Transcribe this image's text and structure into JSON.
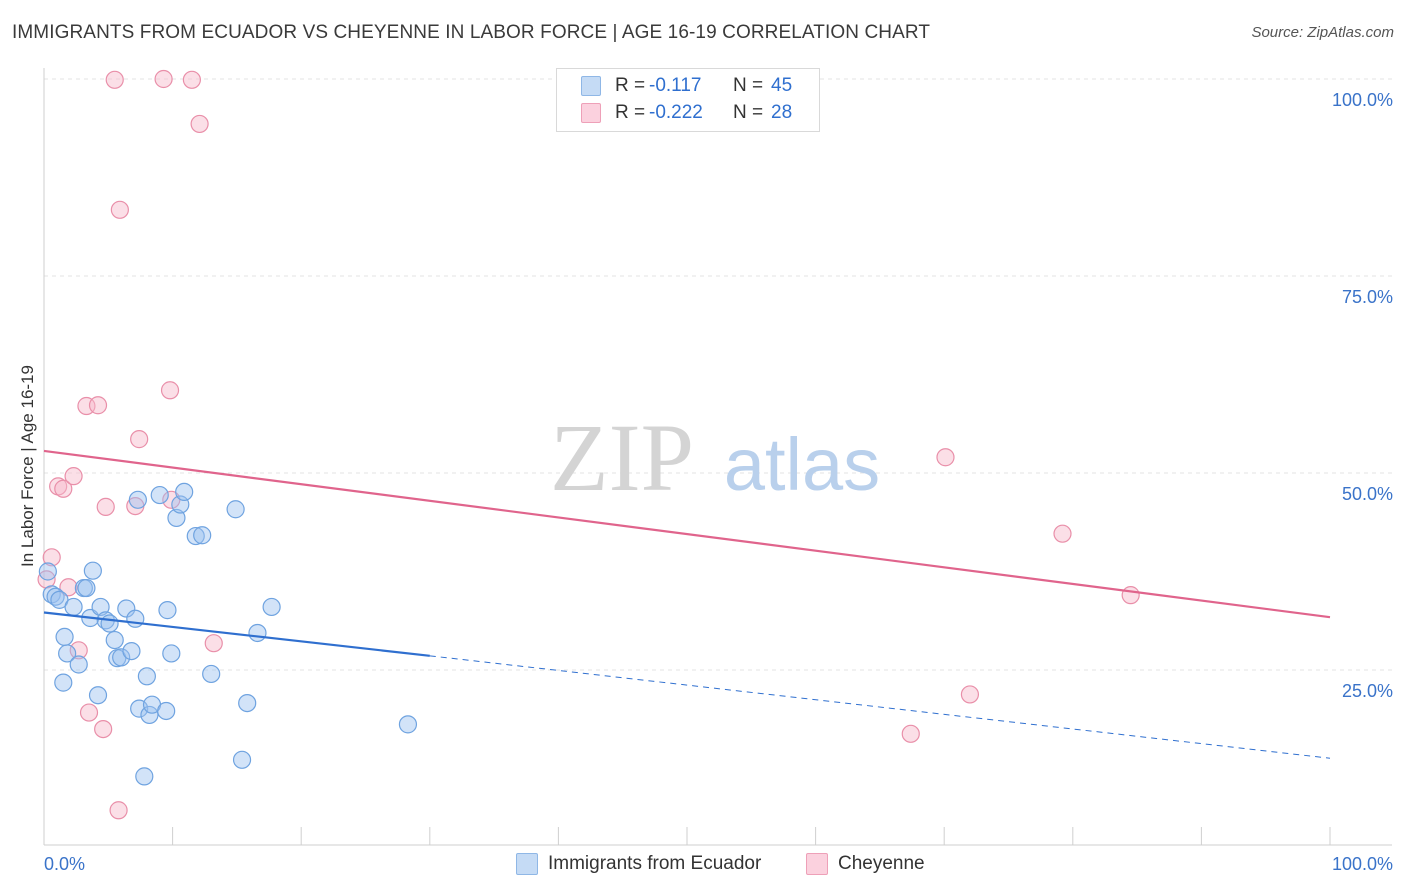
{
  "header": {
    "title": "IMMIGRANTS FROM ECUADOR VS CHEYENNE IN LABOR FORCE | AGE 16-19 CORRELATION CHART",
    "source": "Source: ZipAtlas.com"
  },
  "watermark": {
    "zip": "ZIP",
    "atlas": "atlas"
  },
  "legend": {
    "series1": {
      "r_label": "R =",
      "r_value": "-0.117",
      "n_label": "N =",
      "n_value": "45",
      "color": "#9cc2f0",
      "stroke": "#6fa3e0"
    },
    "series2": {
      "r_label": "R =",
      "r_value": "-0.222",
      "n_label": "N =",
      "n_value": "28",
      "color": "#f7b8ca",
      "stroke": "#e98fa9"
    }
  },
  "bottom_legend": {
    "item1": "Immigrants from Ecuador",
    "item2": "Cheyenne"
  },
  "colors": {
    "blue_line": "#2f6fcf",
    "pink_line": "#e0648c",
    "axis_text": "#3a73c9",
    "grid": "#e3e3e3"
  },
  "chart_data": {
    "type": "scatter",
    "title": "IMMIGRANTS FROM ECUADOR VS CHEYENNE IN LABOR FORCE | AGE 16-19 CORRELATION CHART",
    "xlabel": "",
    "ylabel": "In Labor Force | Age 16-19",
    "xlim": [
      0,
      100
    ],
    "ylim": [
      0,
      103
    ],
    "x_tick_labels": {
      "left": "0.0%",
      "right": "100.0%"
    },
    "y_ticks": [
      {
        "value": 25,
        "label": "25.0%"
      },
      {
        "value": 50,
        "label": "50.0%"
      },
      {
        "value": 75,
        "label": "75.0%"
      },
      {
        "value": 100,
        "label": "100.0%"
      }
    ],
    "series": [
      {
        "name": "Immigrants from Ecuador",
        "points": [
          [
            0.3,
            37.5
          ],
          [
            0.6,
            34.6
          ],
          [
            0.9,
            34.3
          ],
          [
            1.2,
            33.9
          ],
          [
            1.6,
            29.2
          ],
          [
            1.8,
            27.1
          ],
          [
            1.5,
            23.4
          ],
          [
            2.3,
            33.0
          ],
          [
            2.7,
            25.7
          ],
          [
            3.1,
            35.4
          ],
          [
            3.3,
            35.4
          ],
          [
            3.8,
            37.6
          ],
          [
            3.6,
            31.6
          ],
          [
            4.4,
            33.0
          ],
          [
            4.2,
            21.8
          ],
          [
            4.8,
            31.3
          ],
          [
            5.1,
            30.9
          ],
          [
            5.5,
            28.8
          ],
          [
            5.7,
            26.5
          ],
          [
            6.0,
            26.6
          ],
          [
            6.4,
            32.8
          ],
          [
            6.8,
            27.4
          ],
          [
            7.1,
            31.5
          ],
          [
            7.3,
            46.6
          ],
          [
            7.4,
            20.1
          ],
          [
            7.8,
            11.5
          ],
          [
            8.0,
            24.2
          ],
          [
            8.2,
            19.3
          ],
          [
            8.4,
            20.6
          ],
          [
            9.0,
            47.2
          ],
          [
            9.6,
            32.6
          ],
          [
            9.5,
            19.8
          ],
          [
            9.9,
            27.1
          ],
          [
            10.3,
            44.3
          ],
          [
            10.6,
            46.0
          ],
          [
            10.9,
            47.6
          ],
          [
            11.8,
            42.0
          ],
          [
            12.3,
            42.1
          ],
          [
            13.0,
            24.5
          ],
          [
            14.9,
            45.4
          ],
          [
            15.8,
            20.8
          ],
          [
            15.4,
            13.6
          ],
          [
            16.6,
            29.7
          ],
          [
            17.7,
            33.0
          ],
          [
            28.3,
            18.1
          ]
        ],
        "trend": {
          "x_start": 0,
          "y_start": 32.3,
          "x_end_solid": 30,
          "y_end_solid": 26.8,
          "x_end_dashed": 100,
          "y_end_dashed": 13.8
        }
      },
      {
        "name": "Cheyenne",
        "points": [
          [
            0.2,
            36.5
          ],
          [
            0.6,
            39.3
          ],
          [
            1.1,
            48.3
          ],
          [
            1.5,
            48.0
          ],
          [
            1.9,
            35.5
          ],
          [
            2.3,
            49.6
          ],
          [
            2.7,
            27.5
          ],
          [
            3.3,
            58.5
          ],
          [
            3.5,
            19.6
          ],
          [
            4.2,
            58.6
          ],
          [
            4.6,
            17.5
          ],
          [
            4.8,
            45.7
          ],
          [
            5.5,
            99.9
          ],
          [
            5.9,
            83.4
          ],
          [
            5.8,
            7.2
          ],
          [
            7.1,
            45.8
          ],
          [
            7.4,
            54.3
          ],
          [
            9.3,
            100.0
          ],
          [
            9.8,
            60.5
          ],
          [
            9.9,
            46.6
          ],
          [
            11.5,
            99.9
          ],
          [
            12.1,
            94.3
          ],
          [
            13.2,
            28.4
          ],
          [
            67.4,
            16.9
          ],
          [
            70.1,
            52.0
          ],
          [
            72.0,
            21.9
          ],
          [
            79.2,
            42.3
          ],
          [
            84.5,
            34.5
          ]
        ],
        "trend": {
          "x_start": 0,
          "y_start": 52.8,
          "x_end": 100,
          "y_end": 31.7
        }
      }
    ]
  }
}
